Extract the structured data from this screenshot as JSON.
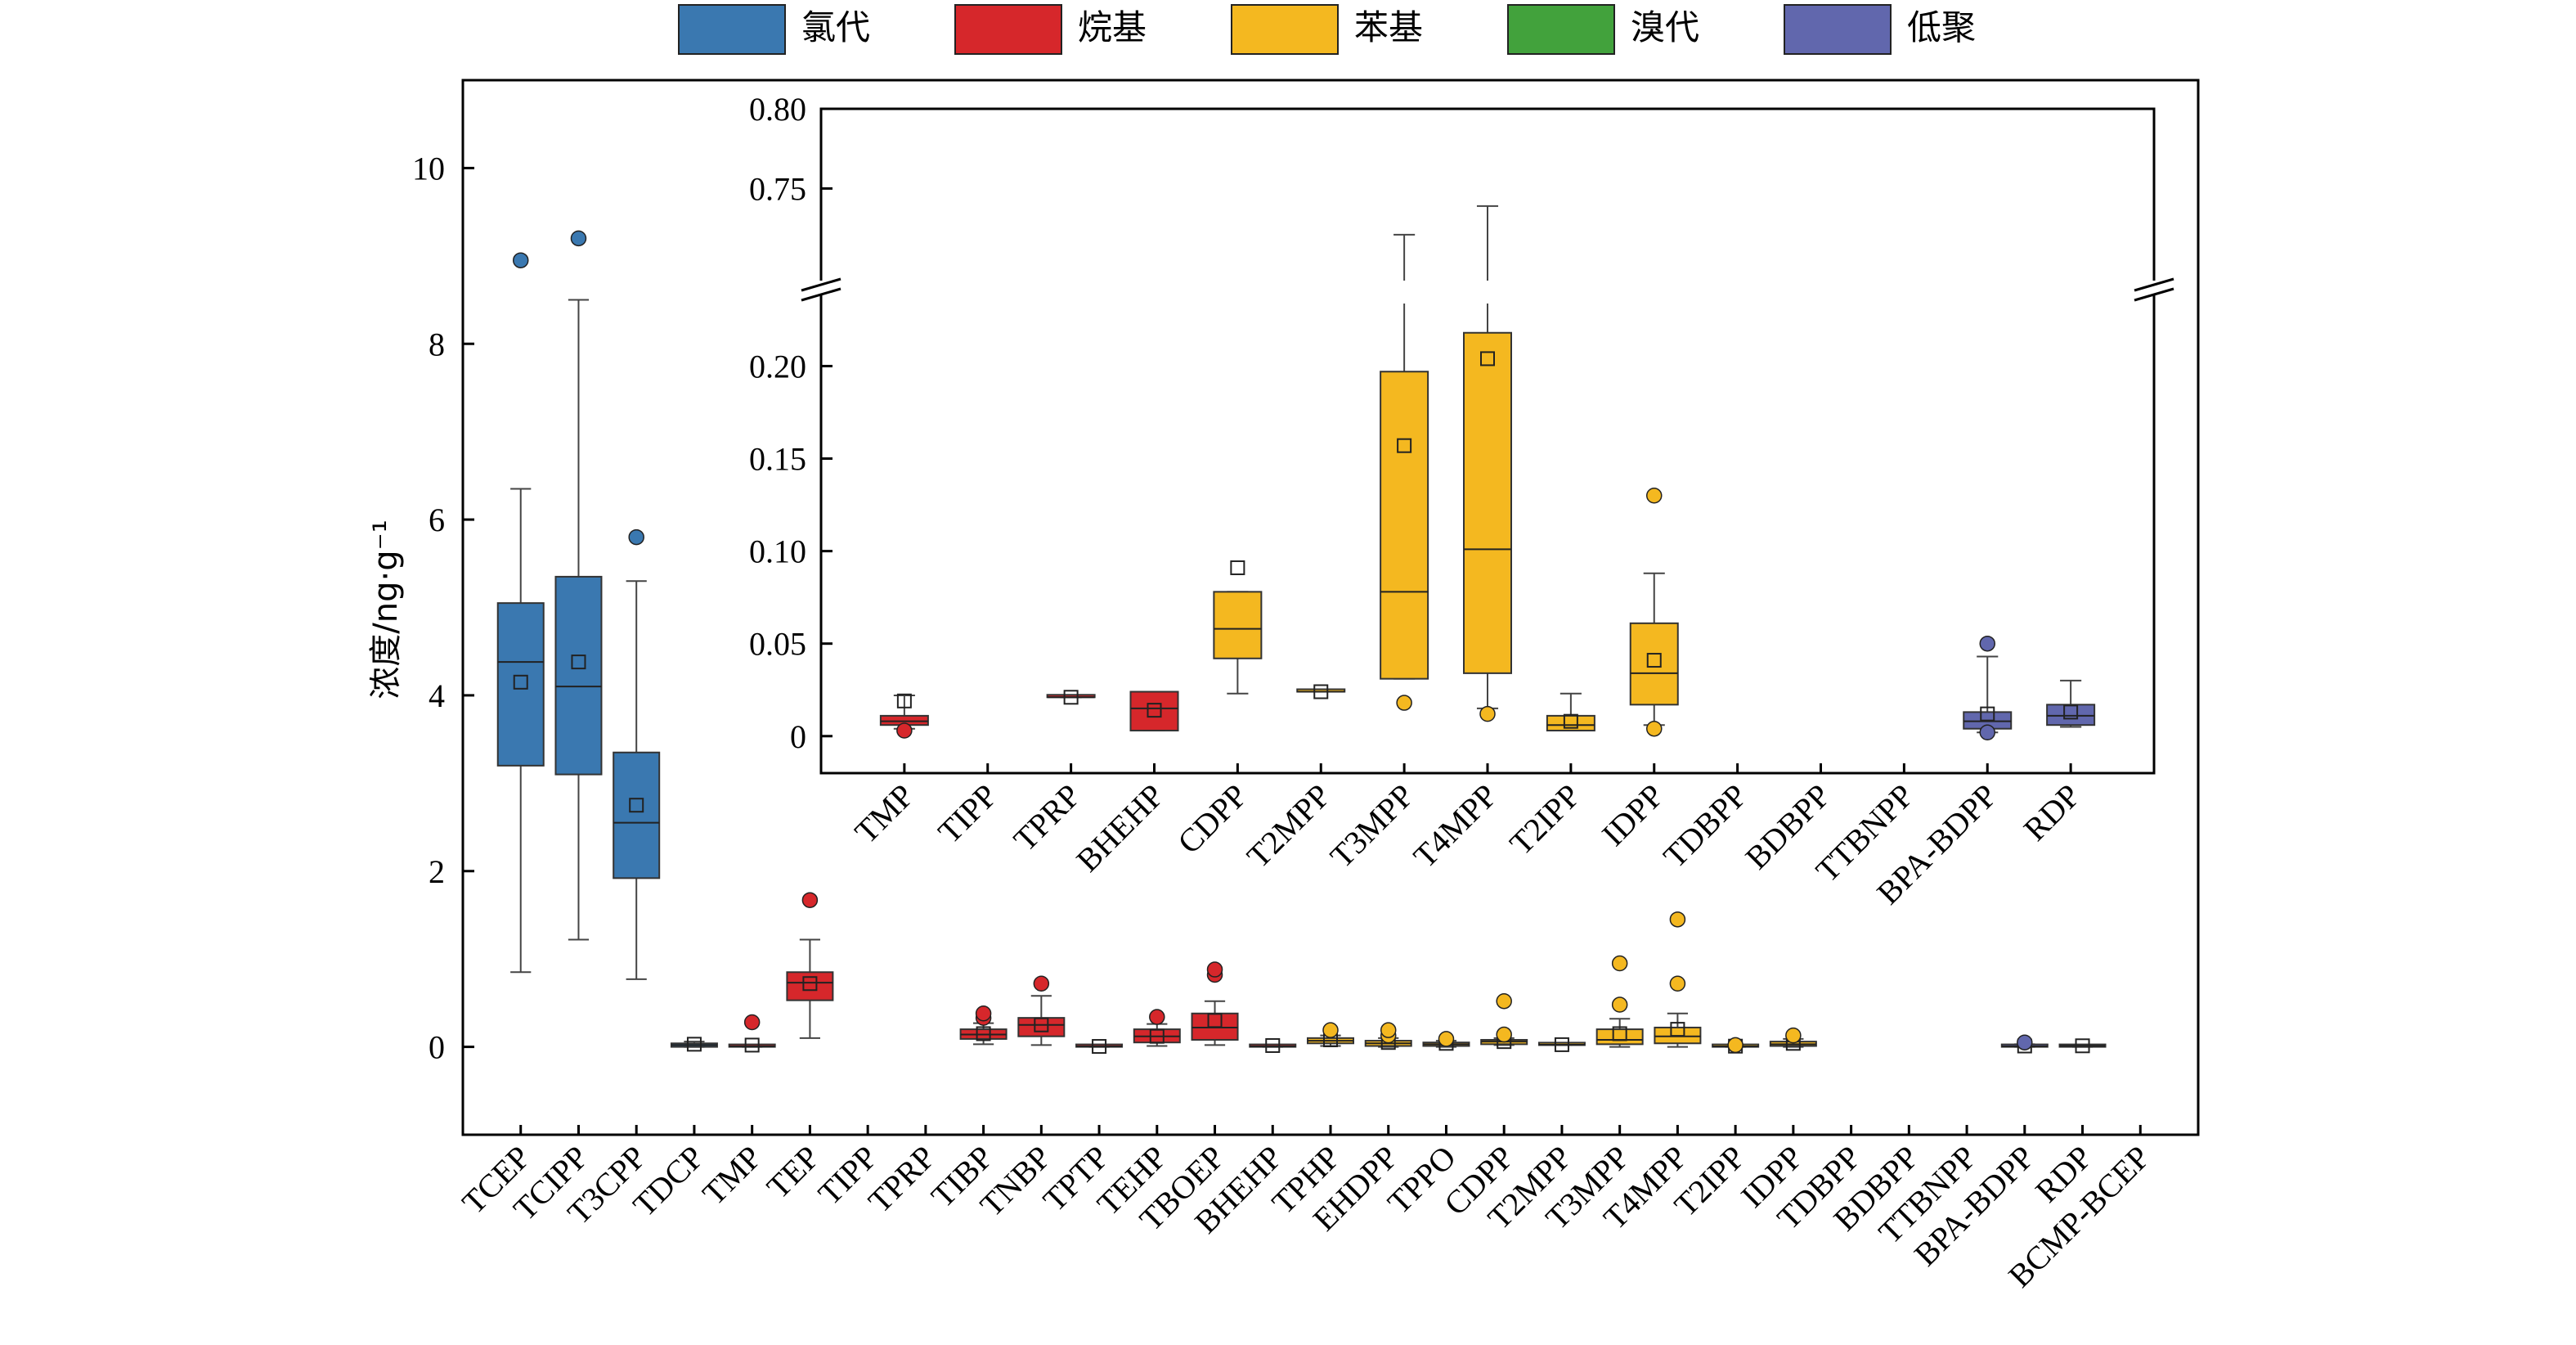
{
  "legend": [
    {
      "label": "氯代",
      "color": "#3a78b0"
    },
    {
      "label": "烷基",
      "color": "#d6272b"
    },
    {
      "label": "苯基",
      "color": "#f4b820"
    },
    {
      "label": "溴代",
      "color": "#42a23c"
    },
    {
      "label": "低聚",
      "color": "#6167ad"
    }
  ],
  "chart_data": [
    {
      "type": "box",
      "role": "main",
      "title": "",
      "xlabel": "",
      "ylabel": "浓度/ng·g⁻¹",
      "ylim": [
        -1,
        11
      ],
      "yticks": [
        0,
        2,
        4,
        6,
        8,
        10
      ],
      "categories": [
        "TCEP",
        "TCIPP",
        "T3CPP",
        "TDCP",
        "TMP",
        "TEP",
        "TIPP",
        "TPRP",
        "TIBP",
        "TNBP",
        "TPTP",
        "TEHP",
        "TBOEP",
        "BHEHP",
        "TPHP",
        "EHDPP",
        "TPPO",
        "CDPP",
        "T2MPP",
        "T3MPP",
        "T4MPP",
        "T2IPP",
        "IDPP",
        "TDBPP",
        "BDBPP",
        "TTBNPP",
        "BPA-BDPP",
        "RDP",
        "BCMP-BCEP"
      ],
      "boxes": [
        {
          "cat": "TCEP",
          "group": "氯代",
          "q1": 3.2,
          "median": 4.38,
          "q3": 5.05,
          "whisker_low": 0.85,
          "whisker_high": 6.35,
          "mean": 4.15,
          "outliers": [
            8.95
          ]
        },
        {
          "cat": "TCIPP",
          "group": "氯代",
          "q1": 3.1,
          "median": 4.1,
          "q3": 5.35,
          "whisker_low": 1.22,
          "whisker_high": 8.5,
          "mean": 4.38,
          "outliers": [
            9.2
          ]
        },
        {
          "cat": "T3CPP",
          "group": "氯代",
          "q1": 1.92,
          "median": 2.55,
          "q3": 3.35,
          "whisker_low": 0.77,
          "whisker_high": 5.3,
          "mean": 2.75,
          "outliers": [
            5.8
          ]
        },
        {
          "cat": "TDCP",
          "group": "氯代",
          "q1": 0.0,
          "median": 0.02,
          "q3": 0.04,
          "whisker_low": 0.0,
          "whisker_high": 0.06,
          "mean": 0.03,
          "outliers": []
        },
        {
          "cat": "TMP",
          "group": "烷基",
          "q1": 0.0,
          "median": 0.005,
          "q3": 0.01,
          "whisker_low": 0.0,
          "whisker_high": 0.02,
          "mean": 0.02,
          "outliers": [
            0.28
          ]
        },
        {
          "cat": "TEP",
          "group": "烷基",
          "q1": 0.53,
          "median": 0.73,
          "q3": 0.85,
          "whisker_low": 0.1,
          "whisker_high": 1.22,
          "mean": 0.72,
          "outliers": [
            1.67
          ]
        },
        {
          "cat": "TIPP",
          "group": "烷基",
          "empty": true
        },
        {
          "cat": "TPRP",
          "group": "烷基",
          "empty": true
        },
        {
          "cat": "TIBP",
          "group": "烷基",
          "q1": 0.09,
          "median": 0.14,
          "q3": 0.2,
          "whisker_low": 0.03,
          "whisker_high": 0.27,
          "mean": 0.15,
          "outliers": [
            0.33,
            0.38
          ]
        },
        {
          "cat": "TNBP",
          "group": "烷基",
          "q1": 0.12,
          "median": 0.25,
          "q3": 0.33,
          "whisker_low": 0.02,
          "whisker_high": 0.58,
          "mean": 0.25,
          "outliers": [
            0.72
          ]
        },
        {
          "cat": "TPTP",
          "group": "烷基",
          "q1": 0.0,
          "median": 0.005,
          "q3": 0.01,
          "whisker_low": 0.0,
          "whisker_high": 0.01,
          "mean": 0.005,
          "outliers": []
        },
        {
          "cat": "TEHP",
          "group": "烷基",
          "q1": 0.05,
          "median": 0.12,
          "q3": 0.2,
          "whisker_low": 0.01,
          "whisker_high": 0.26,
          "mean": 0.12,
          "outliers": [
            0.34
          ]
        },
        {
          "cat": "TBOEP",
          "group": "烷基",
          "q1": 0.08,
          "median": 0.22,
          "q3": 0.38,
          "whisker_low": 0.02,
          "whisker_high": 0.52,
          "mean": 0.3,
          "outliers": [
            0.82,
            0.88
          ]
        },
        {
          "cat": "BHEHP",
          "group": "烷基",
          "q1": 0.0,
          "median": 0.005,
          "q3": 0.02,
          "whisker_low": 0.0,
          "whisker_high": 0.02,
          "mean": 0.015,
          "outliers": []
        },
        {
          "cat": "TPHP",
          "group": "苯基",
          "q1": 0.04,
          "median": 0.07,
          "q3": 0.1,
          "whisker_low": 0.01,
          "whisker_high": 0.13,
          "mean": 0.08,
          "outliers": [
            0.19
          ]
        },
        {
          "cat": "EHDPP",
          "group": "苯基",
          "q1": 0.01,
          "median": 0.04,
          "q3": 0.07,
          "whisker_low": 0.0,
          "whisker_high": 0.1,
          "mean": 0.05,
          "outliers": [
            0.13,
            0.19
          ]
        },
        {
          "cat": "TPPO",
          "group": "苯基",
          "q1": 0.01,
          "median": 0.03,
          "q3": 0.05,
          "whisker_low": 0.0,
          "whisker_high": 0.07,
          "mean": 0.04,
          "outliers": [
            0.09
          ]
        },
        {
          "cat": "CDPP",
          "group": "苯基",
          "q1": 0.03,
          "median": 0.06,
          "q3": 0.08,
          "whisker_low": 0.02,
          "whisker_high": 0.1,
          "mean": 0.06,
          "outliers": [
            0.14,
            0.52
          ]
        },
        {
          "cat": "T2MPP",
          "group": "苯基",
          "q1": 0.02,
          "median": 0.025,
          "q3": 0.03,
          "whisker_low": 0.02,
          "whisker_high": 0.03,
          "mean": 0.025,
          "outliers": []
        },
        {
          "cat": "T3MPP",
          "group": "苯基",
          "q1": 0.03,
          "median": 0.08,
          "q3": 0.2,
          "whisker_low": 0.0,
          "whisker_high": 0.32,
          "mean": 0.15,
          "outliers": [
            0.48,
            0.95
          ]
        },
        {
          "cat": "T4MPP",
          "group": "苯基",
          "q1": 0.04,
          "median": 0.12,
          "q3": 0.22,
          "whisker_low": 0.0,
          "whisker_high": 0.38,
          "mean": 0.2,
          "outliers": [
            0.72,
            1.45
          ]
        },
        {
          "cat": "T2IPP",
          "group": "苯基",
          "q1": 0.0,
          "median": 0.005,
          "q3": 0.01,
          "whisker_low": 0.0,
          "whisker_high": 0.02,
          "mean": 0.008,
          "outliers": [
            0.02
          ]
        },
        {
          "cat": "IDPP",
          "group": "苯基",
          "q1": 0.01,
          "median": 0.03,
          "q3": 0.06,
          "whisker_low": 0.0,
          "whisker_high": 0.09,
          "mean": 0.04,
          "outliers": [
            0.13
          ]
        },
        {
          "cat": "TDBPP",
          "group": "溴代",
          "empty": true
        },
        {
          "cat": "BDBPP",
          "group": "溴代",
          "empty": true
        },
        {
          "cat": "TTBNPP",
          "group": "溴代",
          "empty": true
        },
        {
          "cat": "BPA-BDPP",
          "group": "低聚",
          "q1": 0.0,
          "median": 0.005,
          "q3": 0.01,
          "whisker_low": 0.0,
          "whisker_high": 0.03,
          "mean": 0.01,
          "outliers": [
            0.05
          ]
        },
        {
          "cat": "RDP",
          "group": "低聚",
          "q1": 0.0,
          "median": 0.01,
          "q3": 0.015,
          "whisker_low": 0.0,
          "whisker_high": 0.02,
          "mean": 0.012,
          "outliers": []
        },
        {
          "cat": "BCMP-BCEP",
          "group": "氯代",
          "empty": true
        }
      ]
    },
    {
      "type": "box",
      "role": "inset",
      "title": "",
      "xlabel": "",
      "ylabel": "",
      "ylim_lower": [
        -0.02,
        0.24
      ],
      "ylim_upper": [
        0.685,
        0.8
      ],
      "yticks": [
        0,
        0.05,
        0.1,
        0.15,
        0.2,
        0.75,
        0.8
      ],
      "ytick_labels": [
        "0",
        "0.05",
        "0.10",
        "0.15",
        "0.20",
        "0.75",
        "0.80"
      ],
      "axis_break": true,
      "categories": [
        "TMP",
        "TIPP",
        "TPRP",
        "BHEHP",
        "CDPP",
        "T2MPP",
        "T3MPP",
        "T4MPP",
        "T2IPP",
        "IDPP",
        "TDBPP",
        "BDBPP",
        "TTBNPP",
        "BPA-BDPP",
        "RDP"
      ],
      "boxes": [
        {
          "cat": "TMP",
          "group": "烷基",
          "q1": 0.006,
          "median": 0.008,
          "q3": 0.011,
          "whisker_low": 0.004,
          "whisker_high": 0.022,
          "mean": 0.019,
          "outliers": [
            0.003
          ]
        },
        {
          "cat": "TIPP",
          "group": "烷基",
          "empty": true
        },
        {
          "cat": "TPRP",
          "group": "烷基",
          "q1": 0.021,
          "median": 0.021,
          "q3": 0.021,
          "whisker_low": 0.021,
          "whisker_high": 0.021,
          "mean": 0.021,
          "outliers": []
        },
        {
          "cat": "BHEHP",
          "group": "烷基",
          "q1": 0.003,
          "median": 0.015,
          "q3": 0.024,
          "whisker_low": 0.003,
          "whisker_high": 0.024,
          "mean": 0.014,
          "outliers": []
        },
        {
          "cat": "CDPP",
          "group": "苯基",
          "q1": 0.042,
          "median": 0.058,
          "q3": 0.078,
          "whisker_low": 0.023,
          "whisker_high": 0.078,
          "mean": 0.091,
          "outliers": []
        },
        {
          "cat": "T2MPP",
          "group": "苯基",
          "q1": 0.024,
          "median": 0.024,
          "q3": 0.024,
          "whisker_low": 0.024,
          "whisker_high": 0.024,
          "mean": 0.024,
          "outliers": []
        },
        {
          "cat": "T3MPP",
          "group": "苯基",
          "q1": 0.031,
          "median": 0.078,
          "q3": 0.197,
          "whisker_low": 0.031,
          "whisker_high": 0.721,
          "mean": 0.157,
          "outliers": [
            0.018
          ]
        },
        {
          "cat": "T4MPP",
          "group": "苯基",
          "q1": 0.034,
          "median": 0.101,
          "q3": 0.218,
          "whisker_low": 0.015,
          "whisker_high": 0.739,
          "mean": 0.204,
          "outliers": [
            0.012
          ]
        },
        {
          "cat": "T2IPP",
          "group": "苯基",
          "q1": 0.003,
          "median": 0.006,
          "q3": 0.011,
          "whisker_low": 0.003,
          "whisker_high": 0.023,
          "mean": 0.008,
          "outliers": []
        },
        {
          "cat": "IDPP",
          "group": "苯基",
          "q1": 0.017,
          "median": 0.034,
          "q3": 0.061,
          "whisker_low": 0.006,
          "whisker_high": 0.088,
          "mean": 0.041,
          "outliers": [
            0.004,
            0.13
          ]
        },
        {
          "cat": "TDBPP",
          "group": "溴代",
          "empty": true
        },
        {
          "cat": "BDBPP",
          "group": "溴代",
          "empty": true
        },
        {
          "cat": "TTBNPP",
          "group": "溴代",
          "empty": true
        },
        {
          "cat": "BPA-BDPP",
          "group": "低聚",
          "q1": 0.004,
          "median": 0.008,
          "q3": 0.013,
          "whisker_low": 0.002,
          "whisker_high": 0.043,
          "mean": 0.012,
          "outliers": [
            0.002,
            0.05
          ]
        },
        {
          "cat": "RDP",
          "group": "低聚",
          "q1": 0.006,
          "median": 0.011,
          "q3": 0.017,
          "whisker_low": 0.005,
          "whisker_high": 0.03,
          "mean": 0.013,
          "outliers": []
        }
      ]
    }
  ]
}
